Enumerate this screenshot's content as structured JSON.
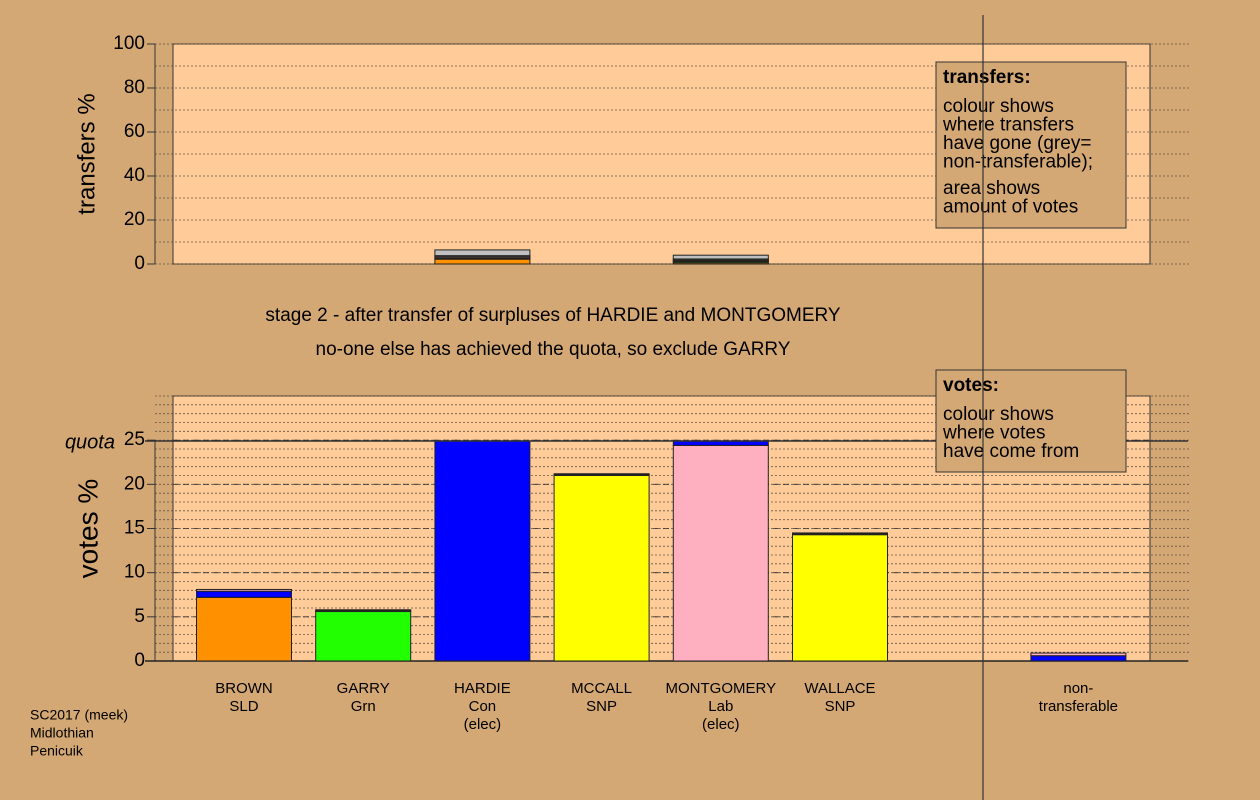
{
  "chart_data": [
    {
      "type": "bar",
      "stacked": true,
      "ylabel": "transfers %",
      "ylim": [
        0,
        100
      ],
      "yticks": [
        0,
        20,
        40,
        60,
        80,
        100
      ],
      "minor_grid": 10,
      "series": [
        {
          "color": "#ff9000",
          "values": [
            null,
            null,
            2.2,
            null,
            0.6,
            null,
            null,
            null
          ]
        },
        {
          "color": "#22ff00",
          "values": [
            null,
            null,
            0.3,
            null,
            0.5,
            null,
            null,
            null
          ]
        },
        {
          "color": "#0000ff",
          "values": [
            null,
            null,
            null,
            null,
            0.3,
            null,
            null,
            null
          ]
        },
        {
          "color": "#ffff00",
          "values": [
            null,
            null,
            0.4,
            null,
            0.4,
            null,
            null,
            null
          ]
        },
        {
          "color": "#ffb0c0",
          "values": [
            null,
            null,
            0.6,
            null,
            null,
            null,
            null,
            null
          ]
        },
        {
          "color": "#ffff00",
          "values": [
            null,
            null,
            0.3,
            null,
            0.5,
            null,
            null,
            null
          ]
        },
        {
          "color": "#c0c0c0",
          "values": [
            null,
            null,
            2.6,
            null,
            1.7,
            null,
            null,
            null
          ]
        }
      ],
      "note": {
        "title": "transfers:",
        "lines": [
          "colour shows",
          "where transfers",
          "have gone (grey=",
          "non-transferable);"
        ],
        "lines2": [
          "area shows",
          "amount of votes"
        ]
      }
    },
    {
      "type": "bar",
      "stacked": true,
      "ylabel": "votes %",
      "ylim": [
        0,
        30
      ],
      "yticks": [
        0,
        5,
        10,
        15,
        20,
        25
      ],
      "minor_grid": 1,
      "quota": {
        "value": 24.9,
        "label": "quota"
      },
      "subtitles": [
        "stage 2 - after transfer of surpluses of HARDIE and MONTGOMERY",
        "no-one else has achieved the quota, so exclude GARRY"
      ],
      "categories": [
        [
          "BROWN",
          "SLD"
        ],
        [
          "GARRY",
          "Grn"
        ],
        [
          "HARDIE",
          "Con",
          "(elec)"
        ],
        [
          "MCCALL",
          "SNP"
        ],
        [
          "MONTGOMERY",
          "Lab",
          "(elec)"
        ],
        [
          "WALLACE",
          "SNP"
        ],
        null,
        [
          "non-",
          "transferable"
        ]
      ],
      "series": [
        {
          "colors": [
            "#ff9000",
            "#22ff00",
            "#0000ff",
            "#ffff00",
            "#ffb0c0",
            "#ffff00",
            null,
            null
          ],
          "values": [
            7.2,
            5.6,
            24.9,
            21.0,
            24.4,
            14.3,
            null,
            null
          ]
        },
        {
          "color": "#0000ff",
          "values": [
            0.7,
            0.1,
            null,
            0.1,
            0.5,
            0.1,
            null,
            0.6
          ]
        },
        {
          "color": "#ffb0c0",
          "values": [
            0.2,
            0.1,
            null,
            0.1,
            null,
            0.1,
            null,
            0.3
          ]
        }
      ],
      "note": {
        "title": "votes:",
        "lines": [
          "colour shows",
          "where votes",
          "have come from"
        ]
      }
    }
  ],
  "footer": [
    "SC2017 (meek)",
    "Midlothian",
    "Penicuik"
  ]
}
